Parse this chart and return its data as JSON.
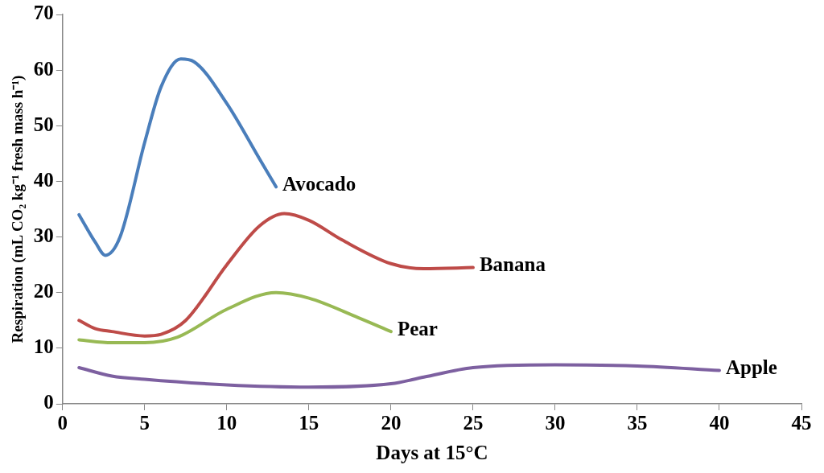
{
  "chart_data": {
    "type": "line",
    "xlabel": "Days at 15°C",
    "ylabel": "Respiration (mL CO₂ kg⁻¹ fresh mass h⁻¹)",
    "xlim": [
      0,
      45
    ],
    "xticks": [
      0,
      5,
      10,
      15,
      20,
      25,
      30,
      35,
      40,
      45
    ],
    "ylim": [
      0,
      70
    ],
    "yticks": [
      0,
      10,
      20,
      30,
      40,
      50,
      60,
      70
    ],
    "grid": false,
    "legend": false,
    "marker": "none",
    "line_style": "solid",
    "series": [
      {
        "name": "Avocado",
        "color": "#4a7ebb",
        "x": [
          1,
          2,
          2.6,
          3.5,
          5,
          6,
          7.2,
          8,
          10,
          12,
          13
        ],
        "values": [
          34,
          29,
          26.7,
          30,
          47,
          57,
          62,
          61.5,
          54,
          44,
          39
        ]
      },
      {
        "name": "Banana",
        "color": "#be4b48",
        "x": [
          1,
          2,
          3,
          5,
          6,
          7.5,
          10,
          12,
          13.5,
          15,
          17,
          20,
          22,
          25
        ],
        "values": [
          15,
          13.5,
          13,
          12.2,
          12.5,
          15,
          25,
          32,
          34.2,
          33,
          29.5,
          25.2,
          24.3,
          24.5
        ]
      },
      {
        "name": "Pear",
        "color": "#98b954",
        "x": [
          1,
          3,
          5,
          7,
          10,
          13,
          15,
          18,
          20
        ],
        "values": [
          11.5,
          11,
          11,
          12,
          17,
          20,
          19,
          15.5,
          13
        ]
      },
      {
        "name": "Apple",
        "color": "#7d60a0",
        "x": [
          1,
          3,
          5,
          10,
          15,
          20,
          22,
          25,
          30,
          35,
          40
        ],
        "values": [
          6.5,
          5,
          4.4,
          3.4,
          3,
          3.6,
          4.8,
          6.5,
          7,
          6.8,
          6
        ]
      }
    ]
  }
}
